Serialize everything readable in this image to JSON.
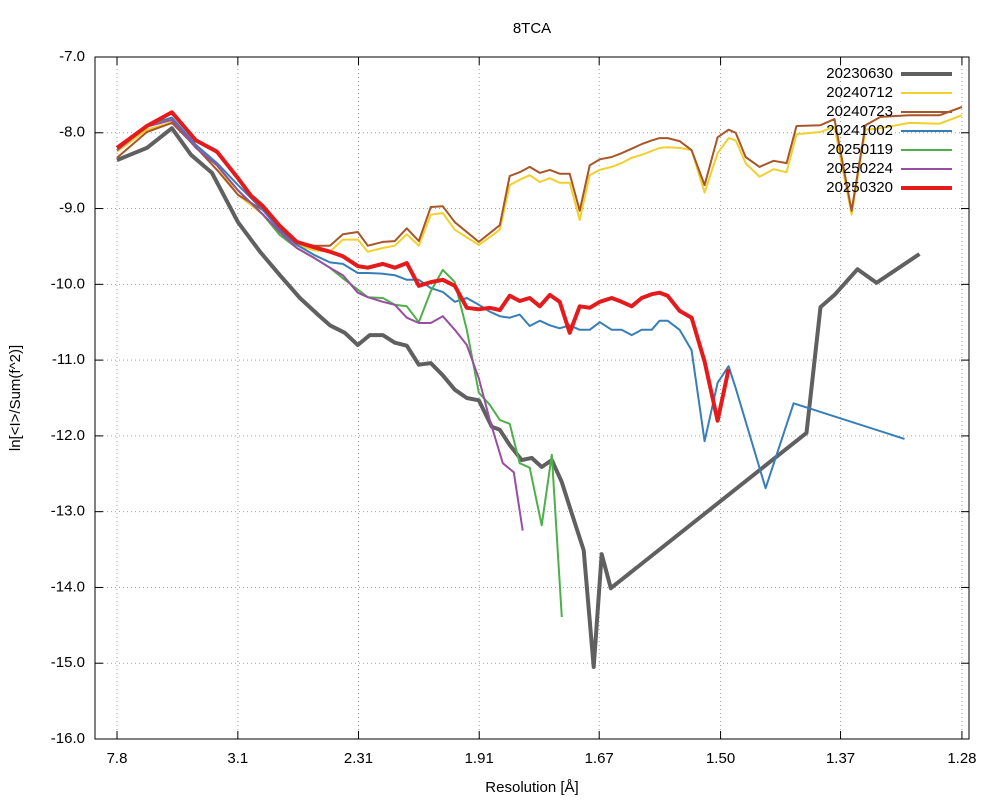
{
  "chart_data": {
    "type": "line",
    "title": "8TCA",
    "x_label": "Resolution [Å]",
    "y_label": "ln[<I>/Sum(f^2)]",
    "xlim": [
      0.0008,
      0.62
    ],
    "ylim": [
      -16,
      -7
    ],
    "grid": true,
    "legend": "top-right",
    "xticks": [
      {
        "value": 0.0164,
        "label": "7.8"
      },
      {
        "value": 0.102,
        "label": "3.1"
      },
      {
        "value": 0.1875,
        "label": "2.31"
      },
      {
        "value": 0.273,
        "label": "1.91"
      },
      {
        "value": 0.358,
        "label": "1.67"
      },
      {
        "value": 0.444,
        "label": "1.50"
      },
      {
        "value": 0.529,
        "label": "1.37"
      },
      {
        "value": 0.615,
        "label": "1.28"
      }
    ],
    "yticks": [
      {
        "value": -7,
        "label": "-7.0"
      },
      {
        "value": -8,
        "label": "-8.0"
      },
      {
        "value": -9,
        "label": "-9.0"
      },
      {
        "value": -10,
        "label": "-10.0"
      },
      {
        "value": -11,
        "label": "-11.0"
      },
      {
        "value": -12,
        "label": "-12.0"
      },
      {
        "value": -13,
        "label": "-13.0"
      },
      {
        "value": -14,
        "label": "-14.0"
      },
      {
        "value": -15,
        "label": "-15.0"
      },
      {
        "value": -16,
        "label": "-16.0"
      }
    ],
    "series": [
      {
        "name": "20230630",
        "color": "#606060",
        "width": 4,
        "x": [
          0.0164,
          0.0376,
          0.0553,
          0.0688,
          0.0837,
          0.1021,
          0.1177,
          0.1318,
          0.146,
          0.1587,
          0.1672,
          0.1778,
          0.187,
          0.1955,
          0.2047,
          0.2132,
          0.2217,
          0.2302,
          0.2387,
          0.2472,
          0.2557,
          0.2642,
          0.2727,
          0.2819,
          0.2876,
          0.2946,
          0.3031,
          0.3102,
          0.3173,
          0.3244,
          0.3315,
          0.3385,
          0.347,
          0.3541,
          0.3598,
          0.3662,
          0.5049,
          0.5148,
          0.5247,
          0.541,
          0.5545,
          0.5849
        ],
        "values": [
          -8.36,
          -8.2,
          -7.94,
          -8.29,
          -8.53,
          -9.18,
          -9.57,
          -9.88,
          -10.18,
          -10.4,
          -10.54,
          -10.64,
          -10.8,
          -10.67,
          -10.67,
          -10.77,
          -10.81,
          -11.06,
          -11.04,
          -11.2,
          -11.39,
          -11.5,
          -11.53,
          -11.88,
          -11.92,
          -12.12,
          -12.32,
          -12.29,
          -12.41,
          -12.32,
          -12.61,
          -13.02,
          -13.51,
          -15.05,
          -13.56,
          -14.01,
          -11.96,
          -10.3,
          -10.14,
          -9.8,
          -9.98,
          -9.6
        ]
      },
      {
        "name": "20240712",
        "color": "#f2d02c",
        "width": 2,
        "x": [
          0.0164,
          0.0376,
          0.0553,
          0.0723,
          0.0872,
          0.1021,
          0.1198,
          0.1318,
          0.1438,
          0.1559,
          0.1672,
          0.1764,
          0.187,
          0.1941,
          0.2047,
          0.2132,
          0.2217,
          0.2302,
          0.2387,
          0.2472,
          0.2557,
          0.2727,
          0.2876,
          0.2946,
          0.3017,
          0.3088,
          0.3159,
          0.323,
          0.33,
          0.3371,
          0.3442,
          0.3513,
          0.3584,
          0.3669,
          0.3739,
          0.381,
          0.3881,
          0.3952,
          0.4008,
          0.4065,
          0.415,
          0.4235,
          0.4327,
          0.4419,
          0.4497,
          0.4547,
          0.4617,
          0.4716,
          0.4816,
          0.4908,
          0.4978,
          0.5148,
          0.5247,
          0.5368,
          0.5467,
          0.5573,
          0.5778,
          0.5991,
          0.615
        ],
        "values": [
          -8.25,
          -7.96,
          -7.86,
          -8.16,
          -8.43,
          -8.82,
          -9.08,
          -9.35,
          -9.48,
          -9.55,
          -9.57,
          -9.41,
          -9.41,
          -9.57,
          -9.52,
          -9.49,
          -9.34,
          -9.49,
          -9.08,
          -9.06,
          -9.28,
          -9.48,
          -9.28,
          -8.69,
          -8.62,
          -8.56,
          -8.65,
          -8.6,
          -8.66,
          -8.66,
          -9.15,
          -8.56,
          -8.49,
          -8.45,
          -8.4,
          -8.33,
          -8.29,
          -8.24,
          -8.2,
          -8.19,
          -8.2,
          -8.23,
          -8.79,
          -8.27,
          -8.07,
          -8.1,
          -8.4,
          -8.58,
          -8.48,
          -8.52,
          -8.02,
          -7.99,
          -7.92,
          -9.08,
          -7.96,
          -7.94,
          -7.87,
          -7.88,
          -7.77
        ]
      },
      {
        "name": "20240723",
        "color": "#a65628",
        "width": 2,
        "x": [
          0.0164,
          0.0376,
          0.0553,
          0.0723,
          0.0872,
          0.1021,
          0.1198,
          0.1318,
          0.1438,
          0.1559,
          0.1672,
          0.1764,
          0.187,
          0.1941,
          0.2047,
          0.2132,
          0.2217,
          0.2302,
          0.2387,
          0.2472,
          0.2557,
          0.2727,
          0.2876,
          0.2946,
          0.3017,
          0.3088,
          0.3159,
          0.323,
          0.33,
          0.3371,
          0.3442,
          0.3513,
          0.3584,
          0.3669,
          0.3739,
          0.381,
          0.3881,
          0.3952,
          0.4008,
          0.4065,
          0.415,
          0.4235,
          0.4327,
          0.4419,
          0.4497,
          0.4547,
          0.4617,
          0.4716,
          0.4816,
          0.4908,
          0.4978,
          0.5148,
          0.5247,
          0.5368,
          0.5467,
          0.5573,
          0.5778,
          0.5991,
          0.615
        ],
        "values": [
          -8.33,
          -7.99,
          -7.87,
          -8.19,
          -8.49,
          -8.82,
          -9.02,
          -9.28,
          -9.44,
          -9.49,
          -9.49,
          -9.34,
          -9.31,
          -9.49,
          -9.44,
          -9.43,
          -9.26,
          -9.43,
          -8.98,
          -8.97,
          -9.18,
          -9.44,
          -9.22,
          -8.57,
          -8.52,
          -8.45,
          -8.53,
          -8.49,
          -8.54,
          -8.54,
          -9.03,
          -8.43,
          -8.35,
          -8.32,
          -8.27,
          -8.21,
          -8.15,
          -8.1,
          -8.07,
          -8.07,
          -8.11,
          -8.23,
          -8.69,
          -8.06,
          -7.96,
          -8.0,
          -8.32,
          -8.45,
          -8.37,
          -8.4,
          -7.91,
          -7.9,
          -7.82,
          -9.03,
          -7.9,
          -7.79,
          -7.77,
          -7.77,
          -7.66
        ]
      },
      {
        "name": "20241002",
        "color": "#377eb8",
        "width": 2,
        "x": [
          0.0164,
          0.0376,
          0.0553,
          0.0723,
          0.0872,
          0.1021,
          0.1198,
          0.1318,
          0.1438,
          0.1559,
          0.1672,
          0.1764,
          0.187,
          0.1941,
          0.2047,
          0.2132,
          0.2217,
          0.2302,
          0.2387,
          0.2472,
          0.2557,
          0.2642,
          0.2727,
          0.2805,
          0.2876,
          0.2946,
          0.3017,
          0.3088,
          0.3159,
          0.323,
          0.33,
          0.3371,
          0.3442,
          0.3513,
          0.3584,
          0.3669,
          0.3739,
          0.381,
          0.3881,
          0.3952,
          0.4008,
          0.4065,
          0.415,
          0.4235,
          0.4327,
          0.4419,
          0.4497,
          0.4547,
          0.4759,
          0.4957,
          0.5743
        ],
        "values": [
          -8.23,
          -7.9,
          -7.8,
          -8.16,
          -8.4,
          -8.69,
          -9.02,
          -9.28,
          -9.48,
          -9.61,
          -9.71,
          -9.73,
          -9.85,
          -9.85,
          -9.86,
          -9.88,
          -9.94,
          -9.94,
          -10.05,
          -10.1,
          -10.23,
          -10.18,
          -10.27,
          -10.36,
          -10.42,
          -10.44,
          -10.4,
          -10.55,
          -10.48,
          -10.54,
          -10.58,
          -10.54,
          -10.6,
          -10.6,
          -10.5,
          -10.6,
          -10.6,
          -10.67,
          -10.6,
          -10.6,
          -10.48,
          -10.48,
          -10.6,
          -10.87,
          -12.07,
          -11.3,
          -11.08,
          -11.37,
          -12.69,
          -11.57,
          -12.04
        ]
      },
      {
        "name": "20250119",
        "color": "#4daf4a",
        "width": 2,
        "x": [
          0.0164,
          0.0376,
          0.0553,
          0.0723,
          0.0872,
          0.1021,
          0.1198,
          0.1318,
          0.1438,
          0.1559,
          0.1672,
          0.1764,
          0.187,
          0.1941,
          0.2047,
          0.2132,
          0.2217,
          0.2302,
          0.2387,
          0.2472,
          0.2557,
          0.2642,
          0.2727,
          0.2805,
          0.2876,
          0.2946,
          0.3017,
          0.3088,
          0.3173,
          0.3244,
          0.3315
        ],
        "values": [
          -8.23,
          -7.9,
          -7.83,
          -8.2,
          -8.43,
          -8.76,
          -9.08,
          -9.35,
          -9.52,
          -9.65,
          -9.78,
          -9.92,
          -10.07,
          -10.17,
          -10.18,
          -10.27,
          -10.29,
          -10.5,
          -10.09,
          -9.81,
          -9.97,
          -10.6,
          -11.43,
          -11.59,
          -11.79,
          -11.84,
          -12.36,
          -12.42,
          -13.18,
          -12.25,
          -14.39
        ]
      },
      {
        "name": "20250224",
        "color": "#984ea3",
        "width": 2,
        "x": [
          0.0164,
          0.0376,
          0.0553,
          0.0723,
          0.0872,
          0.1021,
          0.1198,
          0.1318,
          0.1438,
          0.1559,
          0.1672,
          0.1764,
          0.187,
          0.1941,
          0.2047,
          0.2132,
          0.2217,
          0.2302,
          0.2387,
          0.2472,
          0.2557,
          0.2642,
          0.2727,
          0.2805,
          0.2897,
          0.2975,
          0.3038
        ],
        "values": [
          -8.23,
          -7.92,
          -7.83,
          -8.2,
          -8.43,
          -8.76,
          -9.08,
          -9.31,
          -9.52,
          -9.65,
          -9.78,
          -9.88,
          -10.11,
          -10.17,
          -10.23,
          -10.27,
          -10.44,
          -10.51,
          -10.51,
          -10.42,
          -10.6,
          -10.8,
          -11.24,
          -11.79,
          -12.36,
          -12.48,
          -13.25
        ]
      },
      {
        "name": "20250320",
        "color": "#e41a1c",
        "width": 4,
        "x": [
          0.0164,
          0.0376,
          0.0553,
          0.0723,
          0.0872,
          0.1021,
          0.1113,
          0.1198,
          0.1318,
          0.1438,
          0.1559,
          0.1672,
          0.1764,
          0.187,
          0.1941,
          0.2047,
          0.2132,
          0.2217,
          0.2302,
          0.2387,
          0.2472,
          0.2557,
          0.2642,
          0.2727,
          0.2805,
          0.2876,
          0.2946,
          0.3017,
          0.3088,
          0.3159,
          0.323,
          0.33,
          0.3371,
          0.3442,
          0.3513,
          0.3584,
          0.3669,
          0.3739,
          0.381,
          0.3881,
          0.3952,
          0.4008,
          0.4065,
          0.415,
          0.4235,
          0.4327,
          0.4419,
          0.4497
        ],
        "values": [
          -8.2,
          -7.91,
          -7.73,
          -8.1,
          -8.25,
          -8.6,
          -8.83,
          -8.97,
          -9.23,
          -9.44,
          -9.51,
          -9.57,
          -9.63,
          -9.76,
          -9.78,
          -9.73,
          -9.78,
          -9.72,
          -10.02,
          -9.97,
          -9.94,
          -10.02,
          -10.31,
          -10.33,
          -10.31,
          -10.34,
          -10.15,
          -10.22,
          -10.18,
          -10.29,
          -10.14,
          -10.23,
          -10.64,
          -10.29,
          -10.31,
          -10.23,
          -10.18,
          -10.23,
          -10.29,
          -10.18,
          -10.13,
          -10.11,
          -10.15,
          -10.35,
          -10.44,
          -11.02,
          -11.8,
          -11.12
        ]
      }
    ]
  }
}
